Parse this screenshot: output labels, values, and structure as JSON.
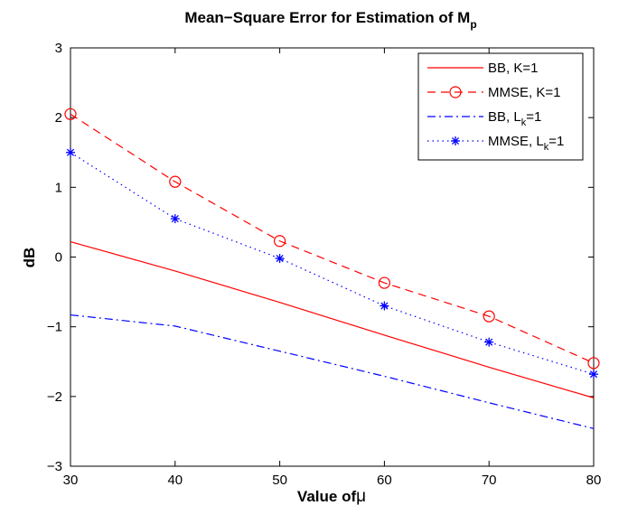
{
  "chart_data": {
    "type": "line",
    "title": {
      "main": "Mean−Square Error for Estimation of M",
      "subscript": "p"
    },
    "xlabel": {
      "text": "Value of",
      "symbol": "μ"
    },
    "ylabel": "dB",
    "xlim": [
      30,
      80
    ],
    "ylim": [
      -3,
      3
    ],
    "xticks": [
      "30",
      "40",
      "50",
      "60",
      "70",
      "80"
    ],
    "yticks": [
      "−3",
      "−2",
      "−1",
      "0",
      "1",
      "2",
      "3"
    ],
    "grid": false,
    "legend_position": "top-right",
    "x": [
      30,
      40,
      50,
      60,
      70,
      80
    ],
    "series": [
      {
        "name": "BB, K=1",
        "label_main": "BB, K=1",
        "label_sub": "",
        "label_tail": "",
        "color": "#ff0000",
        "line_style": "solid",
        "marker": "none",
        "values": [
          0.22,
          -0.2,
          -0.65,
          -1.12,
          -1.58,
          -2.02
        ]
      },
      {
        "name": "MMSE, K=1",
        "label_main": "MMSE, K=1",
        "label_sub": "",
        "label_tail": "",
        "color": "#ff0000",
        "line_style": "dashed",
        "marker": "circle",
        "values": [
          2.05,
          1.08,
          0.23,
          -0.37,
          -0.85,
          -1.52
        ]
      },
      {
        "name": "BB, Lk=1",
        "label_main": "BB, L",
        "label_sub": "k",
        "label_tail": "=1",
        "color": "#0000ff",
        "line_style": "dashdot",
        "marker": "none",
        "values": [
          -0.83,
          -0.99,
          -1.35,
          -1.71,
          -2.09,
          -2.46
        ]
      },
      {
        "name": "MMSE, Lk=1",
        "label_main": "MMSE, L",
        "label_sub": "k",
        "label_tail": "=1",
        "color": "#0000ff",
        "line_style": "dotted",
        "marker": "asterisk",
        "values": [
          1.5,
          0.55,
          -0.02,
          -0.7,
          -1.22,
          -1.68
        ]
      }
    ]
  }
}
